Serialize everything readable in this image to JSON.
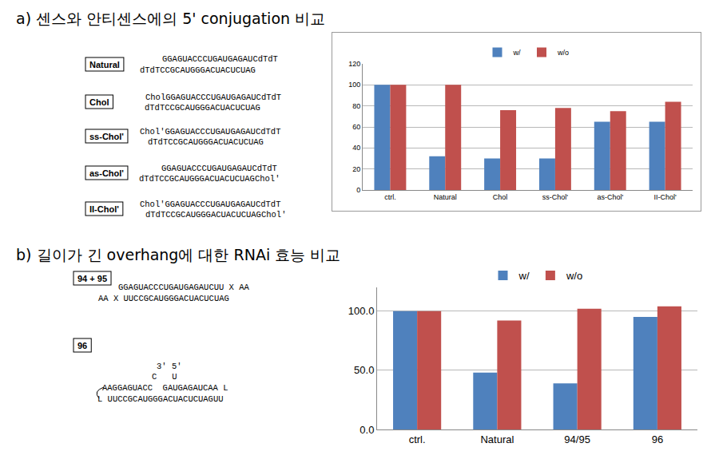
{
  "chart_data": [
    {
      "type": "bar",
      "categories": [
        "ctrl.",
        "Natural",
        "Chol",
        "ss-Chol'",
        "as-Chol'",
        "II-Chol'"
      ],
      "series": [
        {
          "name": "w/",
          "color": "#4f81bd",
          "values": [
            100,
            32,
            30,
            30,
            65,
            65
          ]
        },
        {
          "name": "w/o",
          "color": "#c0504d",
          "values": [
            100,
            100,
            76,
            78,
            75,
            84
          ]
        }
      ],
      "ylim": [
        0,
        120
      ],
      "yticks": [
        0,
        20,
        40,
        60,
        80,
        100,
        120
      ],
      "grid": true,
      "legend": "top"
    },
    {
      "type": "bar",
      "categories": [
        "ctrl.",
        "Natural",
        "94/95",
        "96"
      ],
      "series": [
        {
          "name": "w/",
          "color": "#4f81bd",
          "values": [
            100,
            48,
            39,
            95
          ]
        },
        {
          "name": "w/o",
          "color": "#c0504d",
          "values": [
            100,
            92,
            102,
            104
          ]
        }
      ],
      "ylim": [
        0,
        120
      ],
      "yticks": [
        {
          "value": 0,
          "label": "0.0"
        },
        {
          "value": 50,
          "label": "50.0"
        },
        {
          "value": 100,
          "label": "100.0"
        }
      ],
      "grid": true,
      "legend": "top"
    }
  ],
  "panels": [
    {
      "heading": "a) 센스와 안티센스에의 5' conjugation 비교",
      "constructs": [
        {
          "label": "Natural",
          "lines": [
            "GGAGUACCCUGAUGAGAUCdTdT",
            "dTdTCCGCAUGGGACUACUCUAG"
          ]
        },
        {
          "label": "Chol",
          "lines": [
            "CholGGAGUACCCUGAUGAGAUCdTdT",
            "dTdTCCGCAUGGGACUACUCUAG"
          ]
        },
        {
          "label": "ss-Chol'",
          "lines": [
            "Chol'GGAGUACCCUGAUGAGAUCdTdT",
            "dTdTCCGCAUGGGACUACUCUAG"
          ]
        },
        {
          "label": "as-Chol'",
          "lines": [
            "GGAGUACCCUGAUGAGAUCdTdT",
            "dTdTCCGCAUGGGACUACUCUAGChol'"
          ]
        },
        {
          "label": "II-Chol'",
          "lines": [
            "Chol'GGAGUACCCUGAUGAGAUCdTdT",
            "dTdTCCGCAUGGGACUACUCUAGChol'"
          ]
        }
      ]
    },
    {
      "heading": "b) 길이가 긴 overhang에 대한 RNAi 효능 비교",
      "constructs": [
        {
          "label": "94 + 95",
          "lines": [
            "GGAGUACCCUGAUGAGAUCUU X AA",
            "AA X UUCCGCAUGGGACUACUCUAG"
          ]
        },
        {
          "label": "96",
          "lines": [
            "3' 5'",
            "C   U",
            "AAGGAGUACC  GAUGAGAUCAA L",
            "L UUCCGCAUGGGACUACUCUAGUU"
          ]
        }
      ]
    }
  ]
}
